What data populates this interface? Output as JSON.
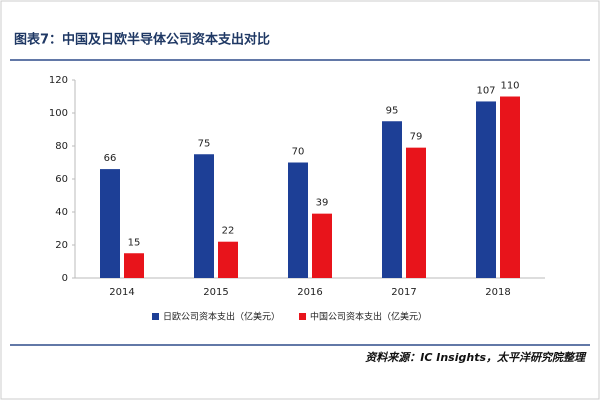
{
  "chart_data": {
    "type": "bar",
    "title": "图表7：中国及日欧半导体公司资本支出对比",
    "source": "资料来源：IC Insights，太平洋研究院整理",
    "categories": [
      "2014",
      "2015",
      "2016",
      "2017",
      "2018"
    ],
    "series": [
      {
        "name": "日欧公司资本支出（亿美元）",
        "color": "#1d3f96",
        "values": [
          66,
          75,
          70,
          95,
          107
        ]
      },
      {
        "name": "中国公司资本支出（亿美元）",
        "color": "#e8141b",
        "values": [
          15,
          22,
          39,
          79,
          110
        ]
      }
    ],
    "ylim": [
      0,
      120
    ],
    "yticks": [
      0,
      20,
      40,
      60,
      80,
      100,
      120
    ],
    "grid": false
  }
}
